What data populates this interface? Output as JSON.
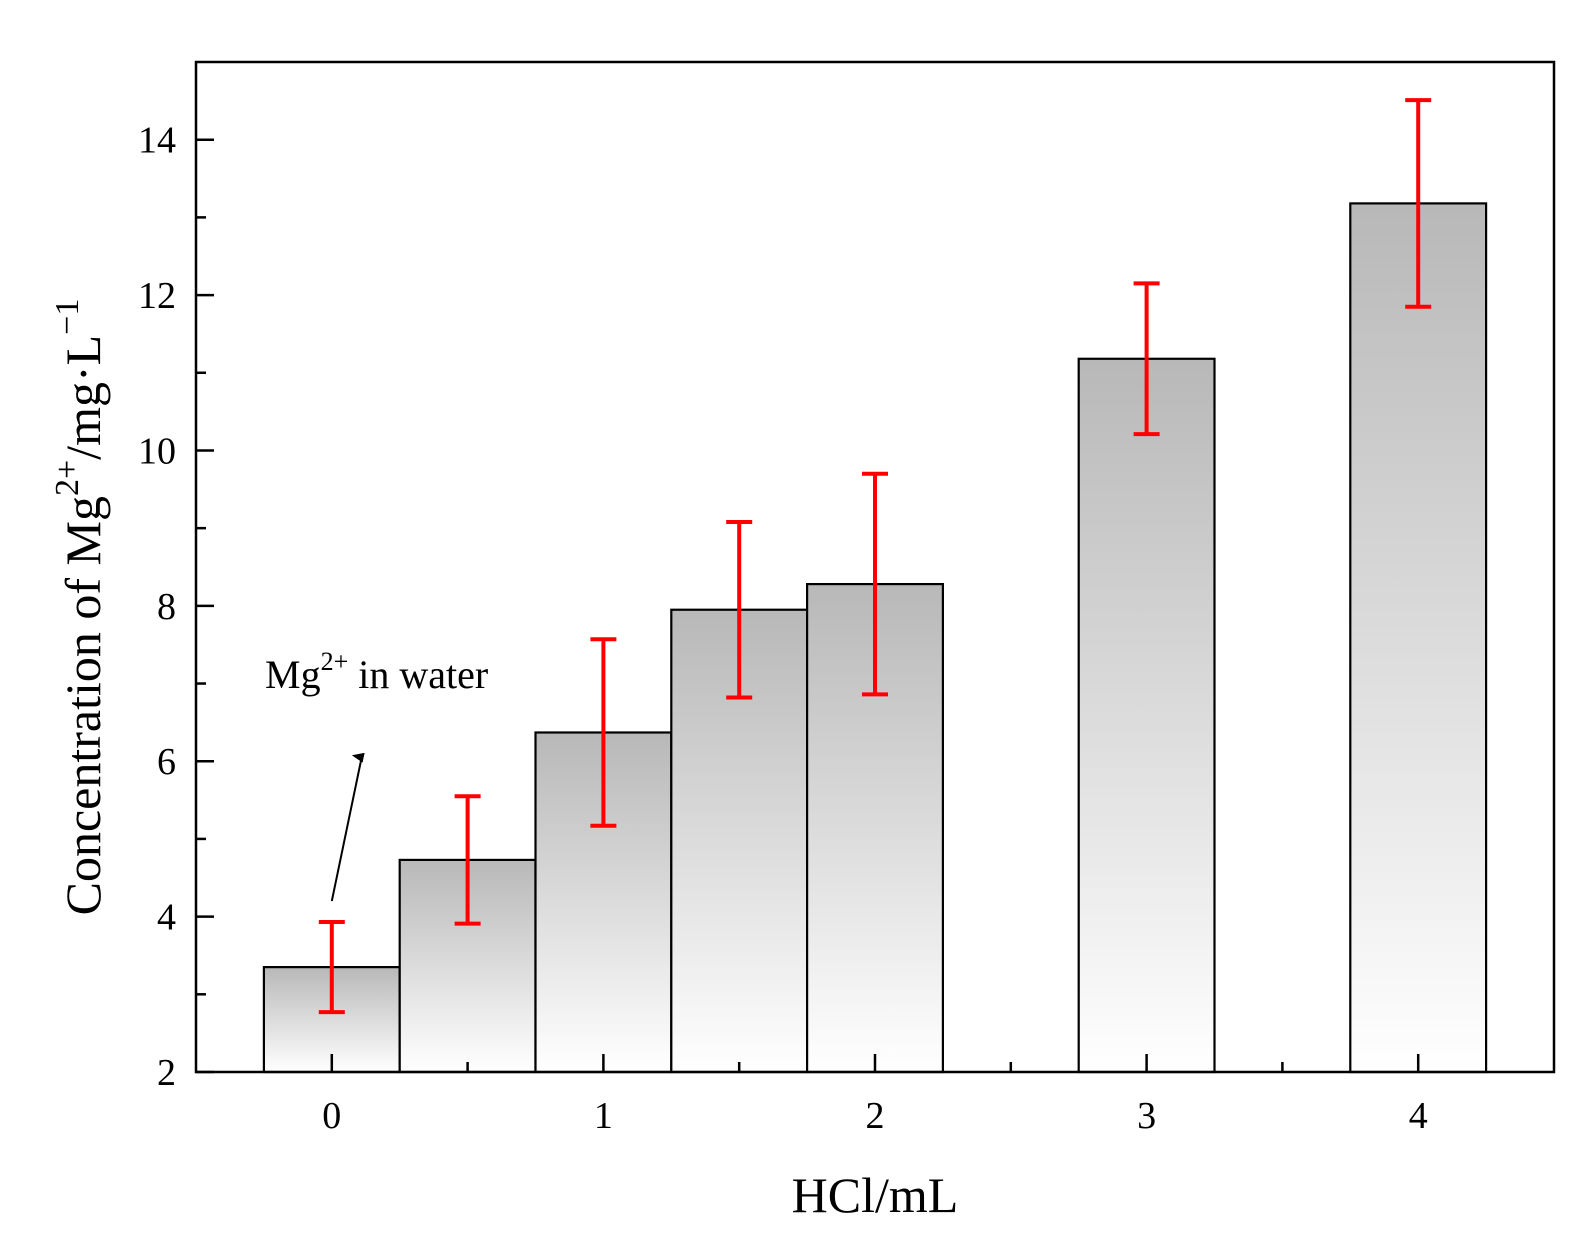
{
  "chart_data": {
    "type": "bar",
    "title": "",
    "xlabel": "HCl/mL",
    "ylabel": {
      "base": "Concentration of Mg",
      "sup": "2+",
      "mid": "/mg·L",
      "sup2": "−1"
    },
    "xlim": [
      -0.5,
      4.5
    ],
    "ylim": [
      2,
      15
    ],
    "x_ticks": [
      0,
      1,
      2,
      3,
      4
    ],
    "x_tick_labels": [
      "0",
      "1",
      "2",
      "3",
      "4"
    ],
    "x_minor_ticks": [
      0.5,
      1.5,
      2.5,
      3.5
    ],
    "y_ticks": [
      2,
      4,
      6,
      8,
      10,
      12,
      14
    ],
    "y_tick_labels": [
      "2",
      "4",
      "6",
      "8",
      "10",
      "12",
      "14"
    ],
    "y_minor_ticks": [
      3,
      5,
      7,
      9,
      11,
      13
    ],
    "bar_width": 0.5,
    "series": [
      {
        "name": "Mg2+ concentration",
        "x": [
          0,
          0.5,
          1,
          1.5,
          2,
          3,
          4
        ],
        "values": [
          3.35,
          4.73,
          6.37,
          7.95,
          8.28,
          11.18,
          13.18
        ],
        "error_low": [
          0.58,
          0.82,
          1.2,
          1.13,
          1.42,
          0.97,
          1.33
        ],
        "error_high": [
          0.58,
          0.82,
          1.2,
          1.13,
          1.42,
          0.97,
          1.33
        ]
      }
    ],
    "colors": {
      "bar_top": "#b8b8b8",
      "bar_bottom": "#ffffff",
      "bar_edge": "#000000",
      "error_bar": "#ff0000",
      "axis": "#000000"
    },
    "annotations": [
      {
        "text_base": "Mg",
        "text_sup": "2+",
        "text_rest": " in water",
        "arrow_from_value": [
          0,
          4.2
        ],
        "arrow_to_value": [
          0.11,
          6.05
        ]
      }
    ]
  }
}
